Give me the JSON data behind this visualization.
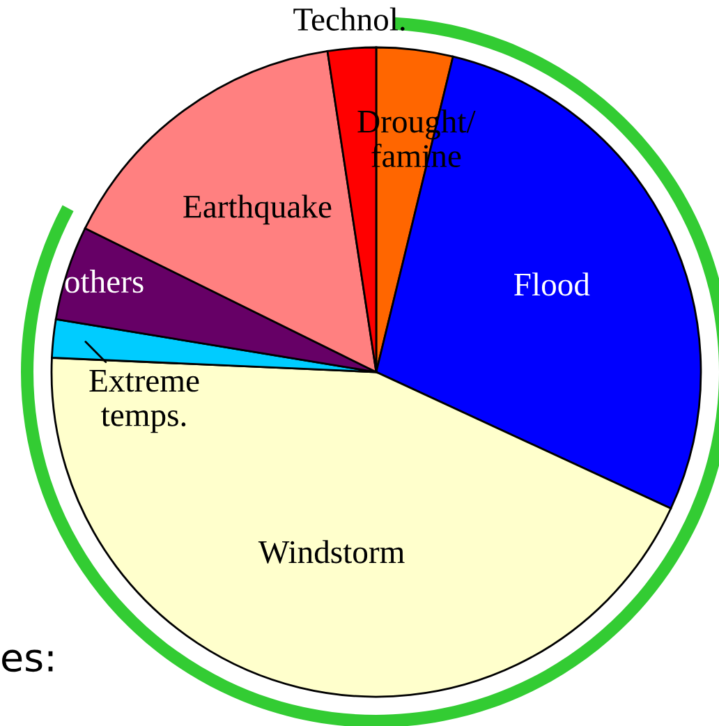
{
  "chart_data": {
    "type": "pie",
    "categories": [
      "Drought/\nfamine",
      "Flood",
      "Windstorm",
      "Extreme\ntemps.",
      "others",
      "Earthquake",
      "Technol."
    ],
    "values": [
      3.8,
      28.1,
      43.8,
      1.9,
      4.7,
      15.3,
      2.4
    ],
    "colors": [
      "#ff6600",
      "#0000ff",
      "#ffffcc",
      "#00ccff",
      "#660066",
      "#ff8080",
      "#ff0000"
    ],
    "annotations": [
      "es:"
    ]
  }
}
